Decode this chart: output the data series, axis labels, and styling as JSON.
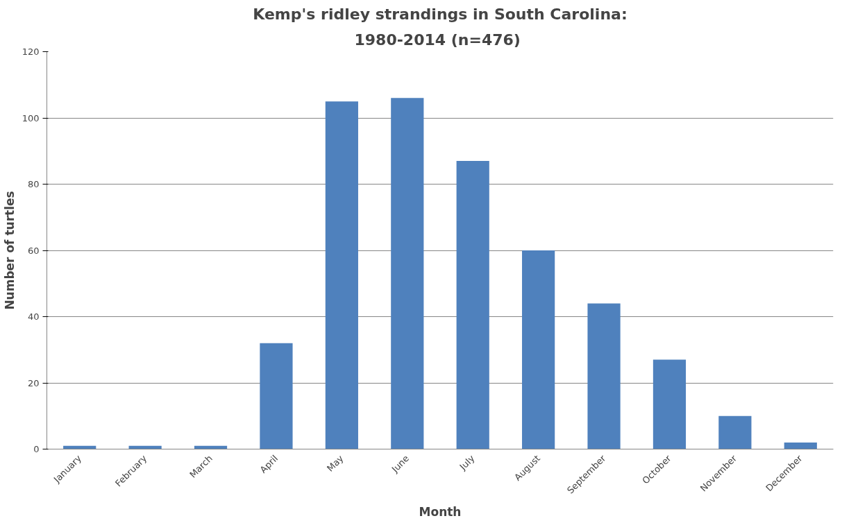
{
  "chart_data": {
    "type": "bar",
    "title": "Kemp's ridley strandings in South Carolina:",
    "subtitle": "1980-2014  (n=476)",
    "xlabel": "Month",
    "ylabel": "Number of turtles",
    "categories": [
      "January",
      "February",
      "March",
      "April",
      "May",
      "June",
      "July",
      "August",
      "September",
      "October",
      "November",
      "December"
    ],
    "values": [
      1,
      1,
      1,
      32,
      105,
      106,
      87,
      60,
      44,
      27,
      10,
      2
    ],
    "color": "#4f81bd",
    "ylim": [
      0,
      120
    ],
    "yticks": [
      0,
      20,
      40,
      60,
      80,
      100,
      120
    ],
    "grid": "y"
  }
}
